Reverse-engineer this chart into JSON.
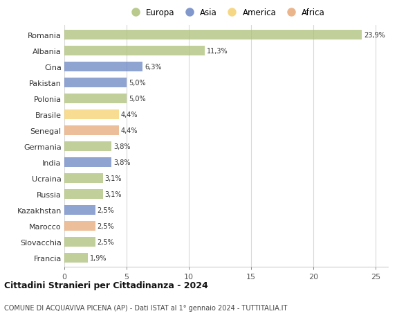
{
  "categories": [
    "Romania",
    "Albania",
    "Cina",
    "Pakistan",
    "Polonia",
    "Brasile",
    "Senegal",
    "Germania",
    "India",
    "Ucraina",
    "Russia",
    "Kazakhstan",
    "Marocco",
    "Slovacchia",
    "Francia"
  ],
  "values": [
    23.9,
    11.3,
    6.3,
    5.0,
    5.0,
    4.4,
    4.4,
    3.8,
    3.8,
    3.1,
    3.1,
    2.5,
    2.5,
    2.5,
    1.9
  ],
  "labels": [
    "23,9%",
    "11,3%",
    "6,3%",
    "5,0%",
    "5,0%",
    "4,4%",
    "4,4%",
    "3,8%",
    "3,8%",
    "3,1%",
    "3,1%",
    "2,5%",
    "2,5%",
    "2,5%",
    "1,9%"
  ],
  "continents": [
    "Europa",
    "Europa",
    "Asia",
    "Asia",
    "Europa",
    "America",
    "Africa",
    "Europa",
    "Asia",
    "Europa",
    "Europa",
    "Asia",
    "Africa",
    "Europa",
    "Europa"
  ],
  "colors": {
    "Europa": "#adc178",
    "Asia": "#6b86c4",
    "America": "#f5d16e",
    "Africa": "#e8a878"
  },
  "xlim": [
    0,
    26
  ],
  "xticks": [
    0,
    5,
    10,
    15,
    20,
    25
  ],
  "title": "Cittadini Stranieri per Cittadinanza - 2024",
  "subtitle": "COMUNE DI ACQUAVIVA PICENA (AP) - Dati ISTAT al 1° gennaio 2024 - TUTTITALIA.IT",
  "background_color": "#ffffff",
  "grid_color": "#d8d8d8",
  "legend_order": [
    "Europa",
    "Asia",
    "America",
    "Africa"
  ]
}
